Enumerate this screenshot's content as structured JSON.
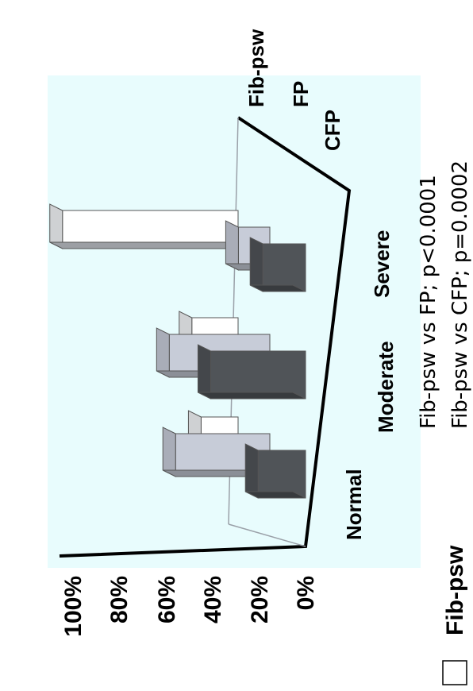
{
  "chart_data": {
    "type": "bar",
    "title": "",
    "categories": [
      "Normal",
      "Moderate",
      "Severe"
    ],
    "series": [
      {
        "name": "Fib-psw",
        "values": [
          20,
          25,
          95
        ]
      },
      {
        "name": "FP",
        "values": [
          45,
          48,
          15
        ]
      },
      {
        "name": "CFP",
        "values": [
          20,
          40,
          18
        ]
      }
    ],
    "ylim": [
      0,
      100
    ],
    "yticks": [
      "0%",
      "20%",
      "40%",
      "60%",
      "80%",
      "100%"
    ],
    "grid": false,
    "colors": {
      "plot_bg": "#e8fcfd",
      "Fib-psw": "#ffffff",
      "FP": "#c7ccd8",
      "CFP": "#505458"
    }
  },
  "legend": {
    "label": "Fib-psw"
  },
  "stats": [
    "Fib-psw vs FP; p<0.0001",
    "Fib-psw vs CFP; p=0.0002"
  ]
}
